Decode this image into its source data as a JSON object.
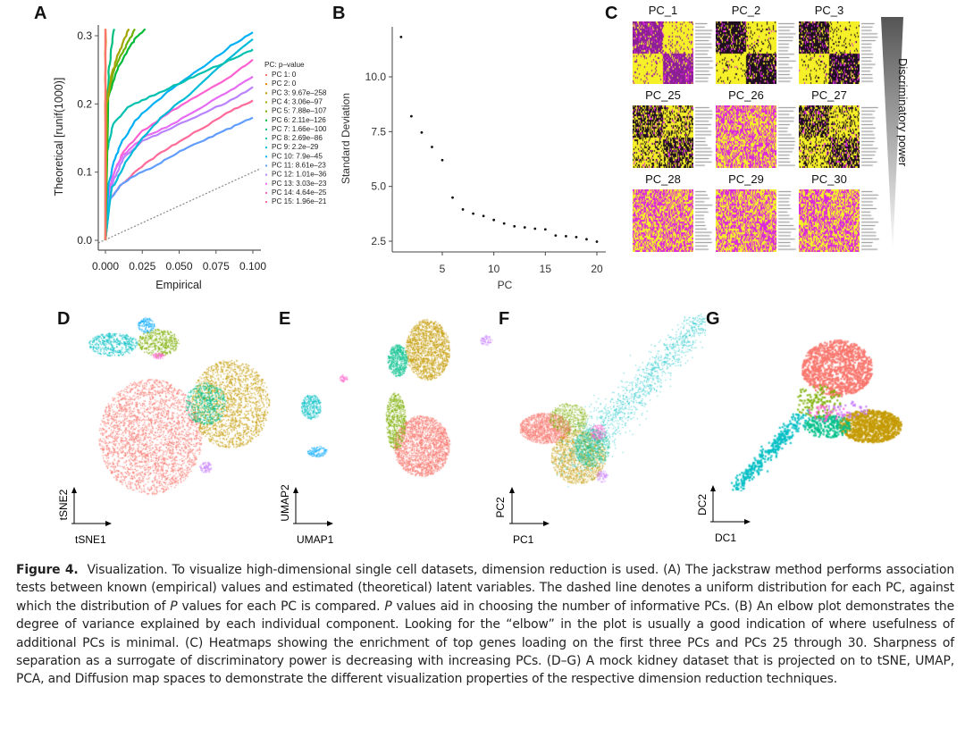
{
  "figure": {
    "label": "Figure 4.",
    "caption_parts": [
      {
        "t": "Visualization. To visualize high-dimensional single cell datasets, dimension reduction is used. (A) The jackstraw method performs association tests between known (empirical) values and estimated (theoretical) latent variables. The dashed line denotes a uniform distribution for each PC, against which the distribution of ",
        "i": false
      },
      {
        "t": "P",
        "i": true
      },
      {
        "t": " values for each PC is compared. ",
        "i": false
      },
      {
        "t": "P",
        "i": true
      },
      {
        "t": " values aid in choosing the number of informative PCs. (B) An elbow plot demonstrates the degree of variance explained by each individual component. Looking for the “elbow” in the plot is usually a good indication of where usefulness of additional PCs is minimal. (C) Heatmaps showing the enrichment of top genes loading on the first three PCs and PCs 25 through 30. Sharpness of separation as a surrogate of discriminatory power is decreasing with increasing PCs. (D–G) A mock kidney dataset that is projected on to tSNE, UMAP, PCA, and Diffusion map spaces to demonstrate the different visualization properties of the respective dimension reduction techniques.",
        "i": false
      }
    ]
  },
  "panels": {
    "A": "A",
    "B": "B",
    "C": "C",
    "D": "D",
    "E": "E",
    "F": "F",
    "G": "G"
  },
  "chart_data": [
    {
      "panel": "A",
      "type": "line",
      "title": "",
      "xlabel": "Empirical",
      "ylabel": "Theoretical [runif(1000)]",
      "xlim": [
        0,
        0.1
      ],
      "ylim": [
        0,
        0.3
      ],
      "xticks": [
        "0.000",
        "0.025",
        "0.050",
        "0.075",
        "0.100"
      ],
      "yticks": [
        "0.0",
        "0.1",
        "0.2",
        "0.3"
      ],
      "legend_title": "PC: p–value",
      "legend_position": "right",
      "reference_line": {
        "style": "dashed",
        "desc": "uniform distribution",
        "x": [
          0,
          0.1
        ],
        "y": [
          0,
          0.1
        ]
      },
      "series": [
        {
          "name": "PC 1: 0",
          "color": "#F8766D",
          "x": [
            0,
            0
          ],
          "y": [
            0,
            0.31
          ]
        },
        {
          "name": "PC 2: 0",
          "color": "#E58700",
          "x": [
            0,
            0
          ],
          "y": [
            0,
            0.31
          ]
        },
        {
          "name": "PC 3: 9.67e–258",
          "color": "#C99800",
          "x": [
            0,
            0,
            0
          ],
          "y": [
            0,
            0.2,
            0.31
          ]
        },
        {
          "name": "PC 4: 3.06e–97",
          "color": "#A3A500",
          "x": [
            0,
            0.001,
            0.004,
            0.008,
            0.012,
            0.016
          ],
          "y": [
            0,
            0.2,
            0.24,
            0.27,
            0.29,
            0.31
          ]
        },
        {
          "name": "PC 5: 7.88e–107",
          "color": "#6BB100",
          "x": [
            0,
            0.001,
            0.005,
            0.01,
            0.015,
            0.02
          ],
          "y": [
            0,
            0.2,
            0.245,
            0.27,
            0.29,
            0.31
          ]
        },
        {
          "name": "PC 6: 2.11e–126",
          "color": "#00BA38",
          "x": [
            0,
            0.002,
            0.008,
            0.014,
            0.02,
            0.027
          ],
          "y": [
            0,
            0.21,
            0.25,
            0.275,
            0.295,
            0.31
          ]
        },
        {
          "name": "PC 7: 1.66e–100",
          "color": "#00BF7D",
          "x": [
            0,
            0,
            0.002,
            0.004,
            0.006
          ],
          "y": [
            0,
            0.15,
            0.24,
            0.28,
            0.31
          ]
        },
        {
          "name": "PC 8: 2.69e–86",
          "color": "#00C0AF",
          "x": [
            0,
            0.001,
            0.005,
            0.015,
            0.03,
            0.05,
            0.07,
            0.09,
            0.1
          ],
          "y": [
            0,
            0.13,
            0.17,
            0.195,
            0.21,
            0.23,
            0.25,
            0.27,
            0.28
          ]
        },
        {
          "name": "PC 9: 2.2e–29",
          "color": "#00BCD8",
          "x": [
            0,
            0.004,
            0.008,
            0.015,
            0.025,
            0.04,
            0.06,
            0.08,
            0.1
          ],
          "y": [
            0,
            0.075,
            0.09,
            0.12,
            0.15,
            0.185,
            0.22,
            0.26,
            0.295
          ]
        },
        {
          "name": "PC 10: 7.9e–45",
          "color": "#00B0F6",
          "x": [
            0,
            0.002,
            0.005,
            0.01,
            0.02,
            0.035,
            0.05,
            0.07,
            0.085,
            0.1
          ],
          "y": [
            0,
            0.08,
            0.11,
            0.14,
            0.175,
            0.205,
            0.23,
            0.26,
            0.285,
            0.305
          ]
        },
        {
          "name": "PC 11: 8.61e–23",
          "color": "#619CFF",
          "x": [
            0,
            0.003,
            0.01,
            0.02,
            0.035,
            0.05,
            0.07,
            0.085,
            0.1
          ],
          "y": [
            0,
            0.06,
            0.08,
            0.095,
            0.11,
            0.13,
            0.15,
            0.165,
            0.18
          ]
        },
        {
          "name": "PC 12: 1.01e–36",
          "color": "#B983FF",
          "x": [
            0,
            0.002,
            0.006,
            0.012,
            0.025,
            0.045,
            0.065,
            0.085,
            0.1
          ],
          "y": [
            0,
            0.06,
            0.09,
            0.12,
            0.145,
            0.165,
            0.185,
            0.205,
            0.225
          ]
        },
        {
          "name": "PC 13: 3.03e–23",
          "color": "#E76BF3",
          "x": [
            0,
            0.002,
            0.006,
            0.012,
            0.025,
            0.045,
            0.065,
            0.085,
            0.1
          ],
          "y": [
            0,
            0.07,
            0.1,
            0.125,
            0.15,
            0.17,
            0.195,
            0.22,
            0.24
          ]
        },
        {
          "name": "PC 14: 4.64e–25",
          "color": "#FD61D1",
          "x": [
            0,
            0.002,
            0.006,
            0.012,
            0.025,
            0.045,
            0.065,
            0.085,
            0.1
          ],
          "y": [
            0,
            0.07,
            0.1,
            0.13,
            0.16,
            0.19,
            0.215,
            0.24,
            0.265
          ]
        },
        {
          "name": "PC 15: 1.96e–21",
          "color": "#FF6A98",
          "x": [
            0,
            0.003,
            0.01,
            0.02,
            0.035,
            0.05,
            0.07,
            0.085,
            0.1
          ],
          "y": [
            0,
            0.06,
            0.08,
            0.1,
            0.125,
            0.145,
            0.17,
            0.19,
            0.205
          ]
        }
      ]
    },
    {
      "panel": "B",
      "type": "scatter",
      "title": "",
      "xlabel": "PC",
      "ylabel": "Standard Deviation",
      "xlim": [
        0.3,
        20.5
      ],
      "ylim": [
        2.2,
        12.2
      ],
      "xticks": [
        "5",
        "10",
        "15",
        "20"
      ],
      "yticks": [
        "2.5",
        "5.0",
        "7.5",
        "10.0"
      ],
      "x": [
        1,
        2,
        3,
        4,
        5,
        6,
        7,
        8,
        9,
        10,
        11,
        12,
        13,
        14,
        15,
        16,
        17,
        18,
        19,
        20
      ],
      "y": [
        11.82,
        8.2,
        7.46,
        6.8,
        6.2,
        4.49,
        3.95,
        3.76,
        3.65,
        3.47,
        3.31,
        3.18,
        3.13,
        3.07,
        3.04,
        2.76,
        2.73,
        2.69,
        2.59,
        2.48
      ]
    },
    {
      "panel": "C",
      "type": "heatmap",
      "heatmaps": [
        {
          "title": "PC_1",
          "pattern": "sharp",
          "top_left": "magenta",
          "top_right": "yellow"
        },
        {
          "title": "PC_2",
          "pattern": "sharp",
          "top_left": "dark",
          "top_right": "yellow"
        },
        {
          "title": "PC_3",
          "pattern": "sharp",
          "top_left": "dark",
          "top_right": "mixed"
        },
        {
          "title": "PC_25",
          "pattern": "moderate",
          "top_left": "dark",
          "top_right": "yellow"
        },
        {
          "title": "PC_26",
          "pattern": "weak",
          "top_left": "magenta",
          "top_right": "yellow"
        },
        {
          "title": "PC_27",
          "pattern": "moderate",
          "top_left": "dark",
          "top_right": "yellow"
        },
        {
          "title": "PC_28",
          "pattern": "weak",
          "top_left": "magenta",
          "top_right": "yellow"
        },
        {
          "title": "PC_29",
          "pattern": "weak",
          "top_left": "magenta",
          "top_right": "yellow"
        },
        {
          "title": "PC_30",
          "pattern": "weak",
          "top_left": "magenta",
          "top_right": "yellow"
        }
      ],
      "colors": {
        "low": "#FF00FF",
        "mid": "#000000",
        "high": "#FFFF00"
      },
      "side_label": "Discriminatory power"
    },
    {
      "panel": "D",
      "type": "scatter",
      "xlabel": "tSNE1",
      "ylabel": "tSNE2",
      "clusters": [
        {
          "color": "#F8766D",
          "cx": 0.36,
          "cy": 0.62,
          "rx": 0.25,
          "ry": 0.3,
          "n": 2600
        },
        {
          "color": "#C49A00",
          "cx": 0.75,
          "cy": 0.45,
          "rx": 0.19,
          "ry": 0.23,
          "n": 1600
        },
        {
          "color": "#00C08B",
          "cx": 0.63,
          "cy": 0.45,
          "rx": 0.1,
          "ry": 0.11,
          "n": 500
        },
        {
          "color": "#00BFC4",
          "cx": 0.18,
          "cy": 0.14,
          "rx": 0.12,
          "ry": 0.06,
          "n": 400
        },
        {
          "color": "#7CAE00",
          "cx": 0.4,
          "cy": 0.13,
          "rx": 0.1,
          "ry": 0.07,
          "n": 400
        },
        {
          "color": "#00A9FF",
          "cx": 0.34,
          "cy": 0.04,
          "rx": 0.04,
          "ry": 0.04,
          "n": 120
        },
        {
          "color": "#FF61CC",
          "cx": 0.4,
          "cy": 0.2,
          "rx": 0.03,
          "ry": 0.015,
          "n": 50
        },
        {
          "color": "#C77CFF",
          "cx": 0.63,
          "cy": 0.78,
          "rx": 0.03,
          "ry": 0.03,
          "n": 70
        }
      ]
    },
    {
      "panel": "E",
      "type": "scatter",
      "xlabel": "UMAP1",
      "ylabel": "UMAP2",
      "clusters": [
        {
          "color": "#C49A00",
          "cx": 0.66,
          "cy": 0.18,
          "rx": 0.11,
          "ry": 0.17,
          "n": 1500
        },
        {
          "color": "#F8766D",
          "cx": 0.63,
          "cy": 0.72,
          "rx": 0.14,
          "ry": 0.17,
          "n": 2000
        },
        {
          "color": "#00C08B",
          "cx": 0.51,
          "cy": 0.24,
          "rx": 0.05,
          "ry": 0.09,
          "n": 500
        },
        {
          "color": "#7CAE00",
          "cx": 0.5,
          "cy": 0.58,
          "rx": 0.05,
          "ry": 0.16,
          "n": 600
        },
        {
          "color": "#00BFC4",
          "cx": 0.08,
          "cy": 0.5,
          "rx": 0.05,
          "ry": 0.07,
          "n": 300
        },
        {
          "color": "#00A9FF",
          "cx": 0.11,
          "cy": 0.75,
          "rx": 0.05,
          "ry": 0.03,
          "n": 120
        },
        {
          "color": "#FF61CC",
          "cx": 0.24,
          "cy": 0.34,
          "rx": 0.02,
          "ry": 0.02,
          "n": 40
        },
        {
          "color": "#C77CFF",
          "cx": 0.95,
          "cy": 0.13,
          "rx": 0.03,
          "ry": 0.03,
          "n": 60
        }
      ]
    },
    {
      "panel": "F",
      "type": "scatter",
      "xlabel": "PC1",
      "ylabel": "PC2",
      "clusters": [
        {
          "color": "#F8766D",
          "cx": 0.18,
          "cy": 0.6,
          "rx": 0.13,
          "ry": 0.08,
          "n": 1500
        },
        {
          "color": "#C49A00",
          "cx": 0.35,
          "cy": 0.75,
          "rx": 0.14,
          "ry": 0.14,
          "n": 1400
        },
        {
          "color": "#00C08B",
          "cx": 0.42,
          "cy": 0.7,
          "rx": 0.09,
          "ry": 0.1,
          "n": 600
        },
        {
          "color": "#7CAE00",
          "cx": 0.3,
          "cy": 0.55,
          "rx": 0.1,
          "ry": 0.08,
          "n": 500
        },
        {
          "color": "#00BFC4",
          "cx": 0.65,
          "cy": 0.3,
          "rx": 0.06,
          "ry": 0.06,
          "n": 1300,
          "elongated": true
        },
        {
          "color": "#FF61CC",
          "cx": 0.45,
          "cy": 0.62,
          "rx": 0.04,
          "ry": 0.04,
          "n": 150
        },
        {
          "color": "#C77CFF",
          "cx": 0.47,
          "cy": 0.85,
          "rx": 0.03,
          "ry": 0.03,
          "n": 80
        }
      ]
    },
    {
      "panel": "G",
      "type": "scatter",
      "xlabel": "DC1",
      "ylabel": "DC2",
      "clusters": [
        {
          "color": "#F8766D",
          "cx": 0.55,
          "cy": 0.25,
          "rx": 0.18,
          "ry": 0.17,
          "n": 1100
        },
        {
          "color": "#C49A00",
          "cx": 0.72,
          "cy": 0.6,
          "rx": 0.16,
          "ry": 0.1,
          "n": 900
        },
        {
          "color": "#00C08B",
          "cx": 0.5,
          "cy": 0.6,
          "rx": 0.12,
          "ry": 0.07,
          "n": 250
        },
        {
          "color": "#7CAE00",
          "cx": 0.45,
          "cy": 0.45,
          "rx": 0.12,
          "ry": 0.1,
          "n": 120
        },
        {
          "color": "#00BFC4",
          "cx": 0.22,
          "cy": 0.78,
          "rx": 0.08,
          "ry": 0.08,
          "n": 350,
          "elongated": true
        },
        {
          "color": "#FF61CC",
          "cx": 0.5,
          "cy": 0.52,
          "rx": 0.1,
          "ry": 0.05,
          "n": 40
        },
        {
          "color": "#C77CFF",
          "cx": 0.6,
          "cy": 0.5,
          "rx": 0.12,
          "ry": 0.05,
          "n": 40
        }
      ]
    }
  ]
}
